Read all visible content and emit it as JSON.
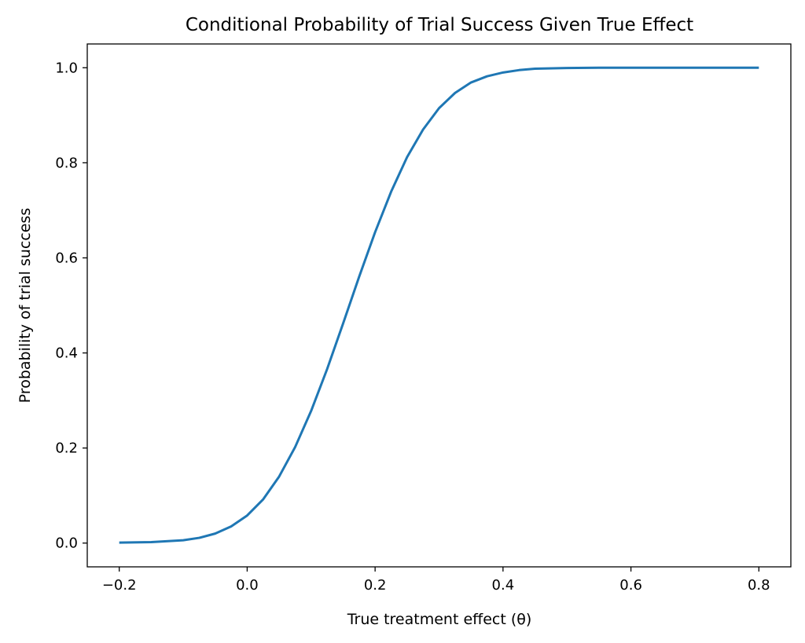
{
  "chart_data": {
    "type": "line",
    "title": "Conditional Probability of Trial Success Given True Effect",
    "xlabel": "True treatment effect (θ)",
    "ylabel": "Probability of trial success",
    "xlim": [
      -0.25,
      0.85
    ],
    "ylim": [
      -0.05,
      1.05
    ],
    "xticks": [
      -0.2,
      0.0,
      0.2,
      0.4,
      0.6,
      0.8
    ],
    "xtick_labels": [
      "−0.2",
      "0.0",
      "0.2",
      "0.4",
      "0.6",
      "0.8"
    ],
    "yticks": [
      0.0,
      0.2,
      0.4,
      0.6,
      0.8,
      1.0
    ],
    "ytick_labels": [
      "0.0",
      "0.2",
      "0.4",
      "0.6",
      "0.8",
      "1.0"
    ],
    "grid": false,
    "series": [
      {
        "color": "#1f77b4",
        "x": [
          -0.2,
          -0.15,
          -0.1,
          -0.075,
          -0.05,
          -0.025,
          0.0,
          0.025,
          0.05,
          0.075,
          0.1,
          0.125,
          0.15,
          0.175,
          0.2,
          0.225,
          0.25,
          0.275,
          0.3,
          0.325,
          0.35,
          0.375,
          0.4,
          0.425,
          0.45,
          0.5,
          0.55,
          0.6,
          0.7,
          0.8
        ],
        "y": [
          0.001,
          0.002,
          0.006,
          0.011,
          0.02,
          0.035,
          0.058,
          0.092,
          0.14,
          0.202,
          0.278,
          0.366,
          0.462,
          0.56,
          0.654,
          0.739,
          0.812,
          0.87,
          0.915,
          0.947,
          0.969,
          0.982,
          0.99,
          0.995,
          0.998,
          0.9995,
          1.0,
          1.0,
          1.0,
          1.0
        ]
      }
    ]
  }
}
